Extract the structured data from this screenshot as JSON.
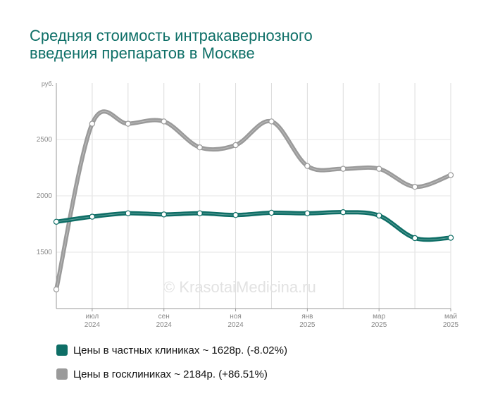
{
  "title_lines": [
    "Средняя стоимость интракавернозного",
    "введения препаратов в Москве"
  ],
  "watermark": "© KrasotaiMedicina.ru",
  "legend": [
    {
      "label": "Цены в частных клиниках ~ 1628р. (-8.02%)",
      "color": "#0e6e66"
    },
    {
      "label": "Цены в госклиниках ~ 2184р. (+86.51%)",
      "color": "#9a9a9a"
    }
  ],
  "chart_data": {
    "type": "line",
    "title": "Средняя стоимость интракавернозного введения препаратов в Москве",
    "ylabel": "руб.",
    "ylim": [
      1000,
      3000
    ],
    "y_ticks": [
      1500,
      2000,
      2500
    ],
    "x_ticks": [
      {
        "month": "июл",
        "year": "2024"
      },
      {
        "month": "сен",
        "year": "2024"
      },
      {
        "month": "ноя",
        "year": "2024"
      },
      {
        "month": "янв",
        "year": "2025"
      },
      {
        "month": "мар",
        "year": "2025"
      },
      {
        "month": "май",
        "year": "2025"
      }
    ],
    "x": [
      "2024-06",
      "2024-07",
      "2024-08",
      "2024-09",
      "2024-10",
      "2024-11",
      "2024-12",
      "2025-01",
      "2025-02",
      "2025-03",
      "2025-04",
      "2025-05"
    ],
    "series": [
      {
        "name": "Цены в госклиниках",
        "color": "#9a9a9a",
        "values": [
          1170,
          2640,
          2640,
          2660,
          2430,
          2450,
          2660,
          2265,
          2240,
          2240,
          2080,
          2184
        ]
      },
      {
        "name": "Цены в частных клиниках",
        "color": "#0e6e66",
        "values": [
          1770,
          1815,
          1845,
          1835,
          1845,
          1830,
          1850,
          1845,
          1855,
          1825,
          1625,
          1628
        ]
      }
    ],
    "grid": true
  }
}
